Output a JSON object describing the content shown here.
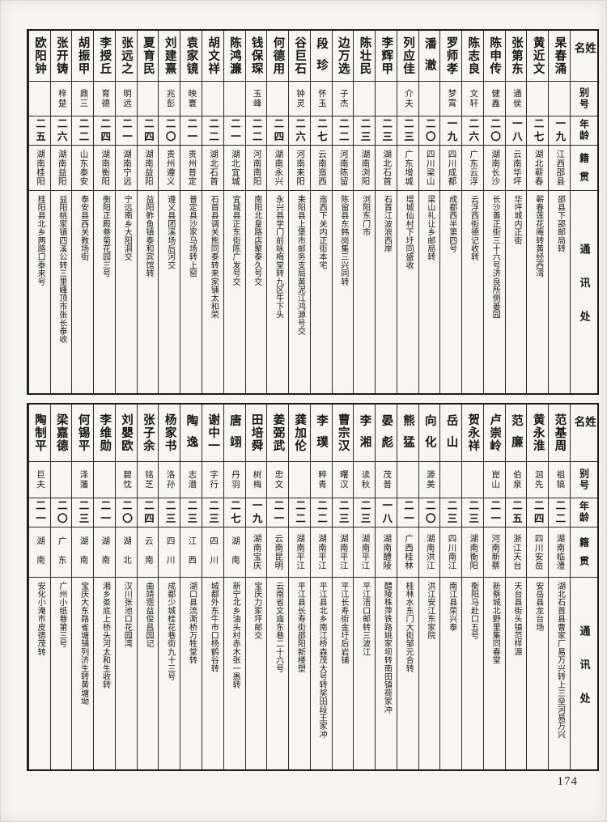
{
  "page": {
    "number": "174"
  },
  "headers": {
    "name": "姓名",
    "alias": "别号",
    "age": "年龄",
    "native": "籍贯",
    "address": "通讯处"
  },
  "tables": [
    {
      "entries": [
        {
          "name": "杲春涌",
          "alias": "",
          "age": "一九",
          "native": "江西邵县",
          "address": "邵县下邵邮局转"
        },
        {
          "name": "黄近文",
          "alias": "",
          "age": "二七",
          "native": "湖北蕲春",
          "address": "蕲春莲花庵转黄经西湾"
        },
        {
          "name": "张第东",
          "alias": "通侯",
          "age": "一八",
          "native": "云南华坪",
          "address": "华坪城内正街"
        },
        {
          "name": "陈申传",
          "alias": "健鑫",
          "age": "二〇",
          "native": "湖南长沙",
          "address": "长沙善正街三十六号济良所侧蒌园"
        },
        {
          "name": "陈志良",
          "alias": "文轩",
          "age": "二六",
          "native": "广东云浮",
          "address": "云浮西街德记收转"
        },
        {
          "name": "罗师孝",
          "alias": "梦霄",
          "age": "一九",
          "native": "四川成都",
          "address": "成都西半第四号"
        },
        {
          "name": "潘澈",
          "alias": "",
          "age": "二〇",
          "native": "四川梁山",
          "address": "梁山礼让乡邮局转"
        },
        {
          "name": "列应佳",
          "alias": "介夫",
          "age": "二三",
          "native": "广东增城",
          "address": "增城仙村下圩同盛收"
        },
        {
          "name": "李辉甲",
          "alias": "",
          "age": "二三",
          "native": "湖北石首",
          "address": "石首江波浪西岸"
        },
        {
          "name": "陈壮民",
          "alias": "",
          "age": "二三",
          "native": "湖南浏阳",
          "address": "浏阳东门市"
        },
        {
          "name": "边万选",
          "alias": "子杰",
          "age": "二二",
          "native": "河南陈留",
          "address": "陈留县东韩岗集三兴同转"
        },
        {
          "name": "段珍",
          "alias": "怀玉",
          "age": "二七",
          "native": "云南迤西",
          "address": "迤西下关内正街本宅"
        },
        {
          "name": "谷巨石",
          "alias": "钟灵",
          "age": "二六",
          "native": "河南耒阳",
          "address": "耒阳县上堡市邮务支局黄泥江鸿源号交"
        },
        {
          "name": "何德用",
          "alias": "",
          "age": "二四",
          "native": "湖南永兴",
          "address": "永兴县学门前咏梅堂转九区牛下头"
        },
        {
          "name": "钱保琛",
          "alias": "玉峰",
          "age": "二二",
          "native": "河南南阳",
          "address": "南阳北皇路店聚泰久号交"
        },
        {
          "name": "陈鸿濂",
          "alias": "",
          "age": "二一",
          "native": "湖北宜城",
          "address": "宜城县正东街陈广发号交"
        },
        {
          "name": "胡文祥",
          "alias": "",
          "age": "二二",
          "native": "湖北石首",
          "address": "石首县调关熊同泰转来家铺太和荣"
        },
        {
          "name": "袁家镜",
          "alias": "映寰",
          "age": "二一",
          "native": "贵州普定",
          "address": "普定县沙家马场转上窑"
        },
        {
          "name": "刘建熹",
          "alias": "兆彭",
          "age": "二〇",
          "native": "贵州遵义",
          "address": "遵义县团溪场后河交"
        },
        {
          "name": "夏育民",
          "alias": "",
          "age": "二四",
          "native": "湖南益阳",
          "address": "益阳鲊鱼镇泰和宾馆转"
        },
        {
          "name": "张远之",
          "alias": "明远",
          "age": "二一",
          "native": "湖南宁远",
          "address": "宁远南乡大阳洞交"
        },
        {
          "name": "李授丘",
          "alias": "育德",
          "age": "二四",
          "native": "湖南衡阳",
          "address": "衡阳正殿巷菊花园三号"
        },
        {
          "name": "胡振甲",
          "alias": "鼎三",
          "age": "二二",
          "native": "山东泰安",
          "address": "泰安县西关教场街"
        },
        {
          "name": "张开铸",
          "alias": "梓楚",
          "age": "二六",
          "native": "湖南益阳",
          "address": "益阳桃家镇四溪公转三里峰顶市张长泰收"
        },
        {
          "name": "欧阳钟",
          "alias": "",
          "age": "二五",
          "native": "湖南桂阳",
          "address": "桂阳县北乡两路口泰来号"
        }
      ]
    },
    {
      "entries": [
        {
          "name": "范基周",
          "alias": "祖镐",
          "age": "二二",
          "native": "湖南临澧",
          "address": "湖北石首县曹家厂易万兴转上三垒河易万兴"
        },
        {
          "name": "黄永淮",
          "alias": "洄先",
          "age": "二四",
          "native": "四川安岳",
          "address": "安岳县龙台场"
        },
        {
          "name": "范廉",
          "alias": "伯泉",
          "age": "二五",
          "native": "浙江天台",
          "address": "天台县街头镇范样源"
        },
        {
          "name": "卢崇岭",
          "alias": "崑山",
          "age": "二一",
          "native": "河南新蔡",
          "address": "新蔡城北野里集同春堂"
        },
        {
          "name": "贺永祥",
          "alias": "",
          "age": "二三",
          "native": "湖南衡阳",
          "address": "衡阳马赴口五号"
        },
        {
          "name": "岳山",
          "alias": "",
          "age": "二三",
          "native": "四川南江",
          "address": "南江县荣兴泰"
        },
        {
          "name": "向化",
          "alias": "源美",
          "age": "二〇",
          "native": "湖南洪江",
          "address": "洪江安江东家院"
        },
        {
          "name": "熊猛",
          "alias": "",
          "age": "二一",
          "native": "广西桂林",
          "address": "桂林水东门大街邹元合转"
        },
        {
          "name": "晏彪",
          "alias": "茂普",
          "age": "一八",
          "native": "湖南醴陵",
          "address": "醴陵株萍铁路姚家坝转南田镇荷家冲"
        },
        {
          "name": "李湘",
          "alias": "读秋",
          "age": "二三",
          "native": "湖南平江",
          "address": "平江浯口邮转三波江"
        },
        {
          "name": "曹宗汉",
          "alias": "曙汉",
          "age": "二三",
          "native": "湖南平江",
          "address": "平江长寿街金圩后岩铺"
        },
        {
          "name": "李璞",
          "alias": "粹青",
          "age": "二二",
          "native": "湖南平江",
          "address": "平江县北乡南江桥森茂大号转奖田段王家冲"
        },
        {
          "name": "龚加伦",
          "alias": "",
          "age": "二二",
          "native": "湖南平江",
          "address": "平江县长寿街邵阳新楼塑"
        },
        {
          "name": "姜弼武",
          "alias": "忠文",
          "age": "二一",
          "native": "云南昆明",
          "address": "云南省文庙东巷二十六号"
        },
        {
          "name": "田培舜",
          "alias": "树梅",
          "age": "一九",
          "native": "湖南宝庆",
          "address": "宝庆力家坪邮交"
        },
        {
          "name": "唐翊",
          "alias": "丹羽",
          "age": "二七",
          "native": "湖南",
          "address": "新宁北乡油头村赤木张一愚转"
        },
        {
          "name": "谢中一",
          "alias": "字行",
          "age": "二三",
          "native": "四川",
          "address": "城都外东牛市口杨鹤谷转"
        },
        {
          "name": "陶逸",
          "alias": "志潜",
          "age": "二三",
          "native": "江西",
          "address": "湖口县流澌桥万牲堂转"
        },
        {
          "name": "杨家书",
          "alias": "洛孙",
          "age": "二三",
          "native": "四川",
          "address": "成都少城桂花巷街九十三号"
        },
        {
          "name": "张子余",
          "alias": "铭芝",
          "age": "二四",
          "native": "云南",
          "address": "曲靖霑益俊昌园记"
        },
        {
          "name": "刘嬰欧",
          "alias": "碧忱",
          "age": "二〇",
          "native": "湖北",
          "address": "汉川张池口花园湾"
        },
        {
          "name": "李维勋",
          "alias": "",
          "age": "二一",
          "native": "湖南",
          "address": "湘乡娄底上桥头河太和生收转"
        },
        {
          "name": "何锡平",
          "alias": "泽藩",
          "age": "二三",
          "native": "湖南",
          "address": "宝庆大东路雀塘铺列济生转黄塘坳"
        },
        {
          "name": "梁嘉德",
          "alias": "",
          "age": "二〇",
          "native": "广东",
          "address": "广州小纸巷第三号"
        },
        {
          "name": "陶制平",
          "alias": "巨夫",
          "age": "二一",
          "native": "湖南",
          "address": "安化小淹市皮德茂转"
        }
      ]
    }
  ]
}
